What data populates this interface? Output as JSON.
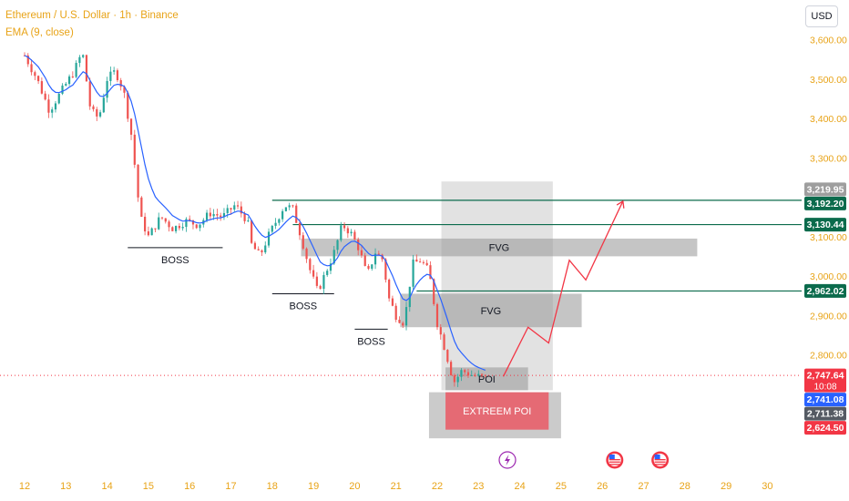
{
  "header": {
    "title": "Ethereum / U.S. Dollar · 1h · Binance",
    "indicator": "EMA (9, close)"
  },
  "currency_button": "USD",
  "colors": {
    "up_candle": "#26a69a",
    "down_candle": "#ef5350",
    "ema": "#2962ff",
    "level_line": "#0b6b4c",
    "projection": "#f23645",
    "zone_gray": "#bdbdbd",
    "zone_red": "#f23645",
    "axis_text": "#e8a317",
    "current_price_line": "#f23645"
  },
  "chart_data": {
    "type": "candlestick",
    "title": "Ethereum / U.S. Dollar · 1h · Binance",
    "x_axis": {
      "labels": [
        "12",
        "13",
        "14",
        "15",
        "16",
        "17",
        "18",
        "19",
        "20",
        "21",
        "22",
        "23",
        "24",
        "25",
        "26",
        "27",
        "28",
        "29",
        "30"
      ]
    },
    "y_axis": {
      "labels": [
        "3,600.00",
        "3,500.00",
        "3,400.00",
        "3,300.00",
        "3,100.00",
        "3,000.00",
        "2,900.00",
        "2,800.00"
      ],
      "range": [
        2580,
        3640
      ]
    },
    "price_path": [
      [
        12.0,
        3560
      ],
      [
        12.3,
        3500
      ],
      [
        12.6,
        3420
      ],
      [
        12.9,
        3470
      ],
      [
        13.2,
        3520
      ],
      [
        13.4,
        3570
      ],
      [
        13.6,
        3420
      ],
      [
        13.8,
        3400
      ],
      [
        14.0,
        3500
      ],
      [
        14.2,
        3520
      ],
      [
        14.4,
        3470
      ],
      [
        14.6,
        3350
      ],
      [
        14.8,
        3150
      ],
      [
        15.0,
        3100
      ],
      [
        15.3,
        3150
      ],
      [
        15.6,
        3120
      ],
      [
        15.9,
        3140
      ],
      [
        16.2,
        3130
      ],
      [
        16.5,
        3160
      ],
      [
        16.8,
        3150
      ],
      [
        17.1,
        3180
      ],
      [
        17.4,
        3140
      ],
      [
        17.5,
        3080
      ],
      [
        17.7,
        3050
      ],
      [
        17.9,
        3100
      ],
      [
        18.1,
        3140
      ],
      [
        18.3,
        3180
      ],
      [
        18.5,
        3170
      ],
      [
        18.7,
        3100
      ],
      [
        18.9,
        3020
      ],
      [
        19.1,
        2960
      ],
      [
        19.3,
        3010
      ],
      [
        19.5,
        3060
      ],
      [
        19.7,
        3130
      ],
      [
        19.9,
        3110
      ],
      [
        20.1,
        3070
      ],
      [
        20.3,
        3000
      ],
      [
        20.5,
        3060
      ],
      [
        20.7,
        3040
      ],
      [
        20.8,
        2950
      ],
      [
        21.0,
        2900
      ],
      [
        21.2,
        2880
      ],
      [
        21.4,
        3030
      ],
      [
        21.6,
        3040
      ],
      [
        21.8,
        3010
      ],
      [
        22.0,
        2880
      ],
      [
        22.2,
        2810
      ],
      [
        22.4,
        2730
      ],
      [
        22.6,
        2760
      ],
      [
        22.8,
        2750
      ],
      [
        23.0,
        2745
      ],
      [
        23.2,
        2742
      ]
    ],
    "ema": {
      "name": "EMA (9, close)",
      "period": 9
    },
    "price_labels": [
      {
        "value": 3219.95,
        "text": "3,219.95",
        "bg": "#9e9e9e"
      },
      {
        "value": 3192.2,
        "text": "3,192.20",
        "bg": "#0b6b4c"
      },
      {
        "value": 3130.44,
        "text": "3,130.44",
        "bg": "#0b6b4c"
      },
      {
        "value": 2962.02,
        "text": "2,962.02",
        "bg": "#0b6b4c"
      },
      {
        "value": 2747.64,
        "text": "2,747.64",
        "sub": "10:08",
        "bg": "#f23645"
      },
      {
        "value": 2741.08,
        "text": "2,741.08",
        "bg": "#2962ff"
      },
      {
        "value": 2711.38,
        "text": "2,711.38",
        "bg": "#555a63"
      },
      {
        "value": 2624.5,
        "text": "2,624.50",
        "bg": "#f23645"
      }
    ],
    "horizontal_levels": [
      {
        "price": 3192.2,
        "from_day": 18.0
      },
      {
        "price": 3130.44,
        "from_day": 18.5
      },
      {
        "price": 2962.02,
        "from_day": 21.5
      }
    ],
    "zones": [
      {
        "label": "FVG",
        "type": "gray",
        "x0": 18.7,
        "x1": 28.3,
        "y0": 3095,
        "y1": 3050
      },
      {
        "label": "FVG",
        "type": "gray",
        "x0": 21.1,
        "x1": 25.5,
        "y0": 2955,
        "y1": 2870
      },
      {
        "label": "POI",
        "type": "gray",
        "x0": 22.2,
        "x1": 24.2,
        "y0": 2768,
        "y1": 2710
      },
      {
        "label": "EXTREEM POI",
        "type": "red",
        "x0": 22.2,
        "x1": 24.7,
        "y0": 2705,
        "y1": 2610
      },
      {
        "label": "",
        "type": "gray-light",
        "x0": 22.1,
        "x1": 24.8,
        "y0": 3240,
        "y1": 2710
      },
      {
        "label": "",
        "type": "gray-mid",
        "x0": 21.8,
        "x1": 25.0,
        "y0": 2705,
        "y1": 2588
      }
    ],
    "structure_labels": [
      {
        "label": "BOSS",
        "price": 3072,
        "from_day": 14.5,
        "to_day": 16.8
      },
      {
        "label": "BOSS",
        "price": 2955,
        "from_day": 18.0,
        "to_day": 19.5
      },
      {
        "label": "BOSS",
        "price": 2865,
        "from_day": 20.0,
        "to_day": 20.8
      }
    ],
    "projection_path": [
      [
        23.6,
        2745
      ],
      [
        24.2,
        2870
      ],
      [
        24.7,
        2830
      ],
      [
        25.2,
        3040
      ],
      [
        25.6,
        2990
      ],
      [
        26.5,
        3190
      ]
    ],
    "events": [
      {
        "icon": "lightning-icon",
        "day": 23.7
      },
      {
        "icon": "us-flag-icon",
        "day": 26.3
      },
      {
        "icon": "us-flag-icon",
        "day": 27.4
      }
    ],
    "current_price": 2747.64,
    "grid": false
  }
}
